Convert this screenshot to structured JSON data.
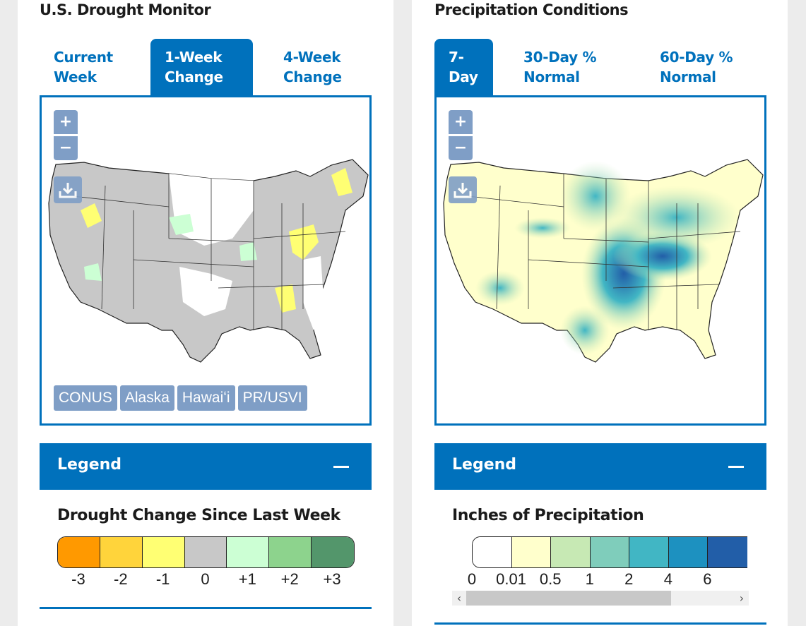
{
  "panels": [
    {
      "title": "U.S. Drought Monitor",
      "tabs": [
        {
          "label": "Current Week",
          "active": false
        },
        {
          "label": "1-Week Change",
          "active": true
        },
        {
          "label": "4-Week Change",
          "active": false
        }
      ],
      "map": {
        "zoom_in": "+",
        "zoom_out": "−",
        "download_icon": "download-icon",
        "region_buttons": [
          "CONUS",
          "Alaska",
          "Hawaiʻi",
          "PR/USVI"
        ]
      },
      "legend": {
        "header": "Legend",
        "collapse_icon": "minus-icon",
        "subtitle": "Drought Change Since Last Week",
        "classes": [
          {
            "label": "-3",
            "color": "#ff9900"
          },
          {
            "label": "-2",
            "color": "#ffd43b"
          },
          {
            "label": "-1",
            "color": "#ffff73"
          },
          {
            "label": "0",
            "color": "#c8c8c8"
          },
          {
            "label": "+1",
            "color": "#ccffd4"
          },
          {
            "label": "+2",
            "color": "#8dd38d"
          },
          {
            "label": "+3",
            "color": "#53966b"
          }
        ]
      }
    },
    {
      "title": "Precipitation Conditions",
      "tabs": [
        {
          "label": "7-Day",
          "active": true
        },
        {
          "label": "30-Day % Normal",
          "active": false
        },
        {
          "label": "60-Day % Normal",
          "active": false
        }
      ],
      "map": {
        "zoom_in": "+",
        "zoom_out": "−",
        "download_icon": "download-icon"
      },
      "legend": {
        "header": "Legend",
        "collapse_icon": "minus-icon",
        "subtitle": "Inches of Precipitation",
        "classes": [
          {
            "label": "0",
            "color": "#ffffff"
          },
          {
            "label": "0.01",
            "color": "#ffffcc"
          },
          {
            "label": "0.5",
            "color": "#c7e9b4"
          },
          {
            "label": "1",
            "color": "#7fcdbb"
          },
          {
            "label": "2",
            "color": "#41b6c4"
          },
          {
            "label": "4",
            "color": "#1d91c0"
          },
          {
            "label": "6",
            "color": "#225ea8"
          }
        ],
        "scrollbar": {
          "left_arrow": "‹",
          "right_arrow": "›"
        }
      }
    }
  ],
  "colors": {
    "accent": "#0071bc",
    "control": "#7f9ec6",
    "page_bg": "#ececec"
  }
}
